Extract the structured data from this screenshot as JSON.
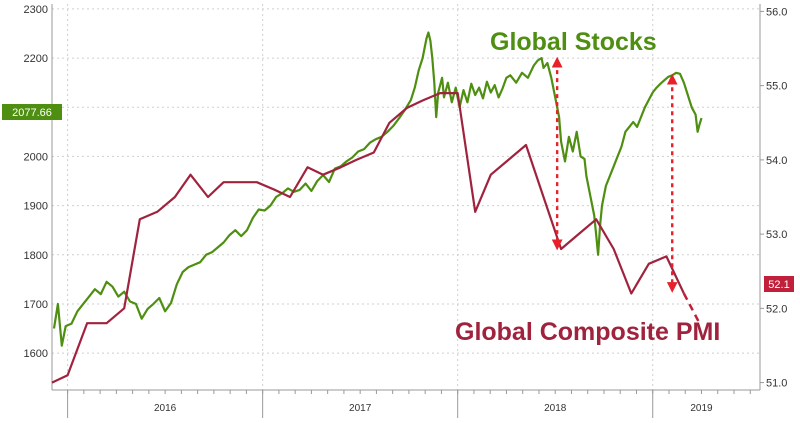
{
  "chart_data": {
    "type": "line",
    "title": "",
    "xlabel": "",
    "ylabel": "",
    "grid": true,
    "x_ticks": [
      "2016",
      "2017",
      "2018",
      "2019"
    ],
    "left_axis": {
      "ticks": [
        1600,
        1700,
        1800,
        1900,
        2000,
        2100,
        2200,
        2300
      ],
      "ylim": [
        1525,
        2310
      ]
    },
    "right_axis": {
      "ticks": [
        51.0,
        52.0,
        53.0,
        54.0,
        55.0,
        56.0
      ],
      "ticks_text": [
        "51.0",
        "52.0",
        "53.0",
        "54.0",
        "55.0",
        "56.0"
      ],
      "ylim": [
        50.9,
        56.1
      ]
    },
    "x_range": [
      2015.92,
      2019.55
    ],
    "series": [
      {
        "name": "Global Stocks",
        "label": "Global Stocks",
        "axis": "left",
        "color": "#4e8f12",
        "last_value_text": "2077.66",
        "points": [
          [
            2015.93,
            1650
          ],
          [
            2015.95,
            1700
          ],
          [
            2015.97,
            1615
          ],
          [
            2015.99,
            1655
          ],
          [
            2016.02,
            1660
          ],
          [
            2016.05,
            1685
          ],
          [
            2016.08,
            1700
          ],
          [
            2016.11,
            1715
          ],
          [
            2016.14,
            1730
          ],
          [
            2016.17,
            1720
          ],
          [
            2016.2,
            1745
          ],
          [
            2016.23,
            1735
          ],
          [
            2016.26,
            1715
          ],
          [
            2016.29,
            1725
          ],
          [
            2016.32,
            1705
          ],
          [
            2016.35,
            1700
          ],
          [
            2016.38,
            1670
          ],
          [
            2016.41,
            1690
          ],
          [
            2016.44,
            1700
          ],
          [
            2016.47,
            1712
          ],
          [
            2016.5,
            1685
          ],
          [
            2016.53,
            1702
          ],
          [
            2016.56,
            1740
          ],
          [
            2016.59,
            1765
          ],
          [
            2016.62,
            1775
          ],
          [
            2016.65,
            1780
          ],
          [
            2016.68,
            1785
          ],
          [
            2016.71,
            1800
          ],
          [
            2016.74,
            1805
          ],
          [
            2016.77,
            1815
          ],
          [
            2016.8,
            1825
          ],
          [
            2016.83,
            1840
          ],
          [
            2016.86,
            1850
          ],
          [
            2016.89,
            1838
          ],
          [
            2016.92,
            1850
          ],
          [
            2016.95,
            1875
          ],
          [
            2016.98,
            1892
          ],
          [
            2017.01,
            1890
          ],
          [
            2017.04,
            1900
          ],
          [
            2017.07,
            1918
          ],
          [
            2017.1,
            1925
          ],
          [
            2017.13,
            1935
          ],
          [
            2017.16,
            1928
          ],
          [
            2017.19,
            1932
          ],
          [
            2017.22,
            1945
          ],
          [
            2017.25,
            1930
          ],
          [
            2017.28,
            1950
          ],
          [
            2017.31,
            1962
          ],
          [
            2017.34,
            1948
          ],
          [
            2017.37,
            1975
          ],
          [
            2017.4,
            1980
          ],
          [
            2017.43,
            1990
          ],
          [
            2017.46,
            1998
          ],
          [
            2017.49,
            2010
          ],
          [
            2017.52,
            2015
          ],
          [
            2017.55,
            2028
          ],
          [
            2017.58,
            2035
          ],
          [
            2017.61,
            2040
          ],
          [
            2017.64,
            2050
          ],
          [
            2017.67,
            2062
          ],
          [
            2017.7,
            2078
          ],
          [
            2017.73,
            2095
          ],
          [
            2017.76,
            2115
          ],
          [
            2017.78,
            2140
          ],
          [
            2017.8,
            2175
          ],
          [
            2017.82,
            2200
          ],
          [
            2017.84,
            2240
          ],
          [
            2017.85,
            2252
          ],
          [
            2017.86,
            2235
          ],
          [
            2017.87,
            2200
          ],
          [
            2017.88,
            2150
          ],
          [
            2017.89,
            2080
          ],
          [
            2017.9,
            2130
          ],
          [
            2017.92,
            2160
          ],
          [
            2017.93,
            2120
          ],
          [
            2017.95,
            2150
          ],
          [
            2017.97,
            2110
          ],
          [
            2017.99,
            2140
          ],
          [
            2018.01,
            2100
          ],
          [
            2018.03,
            2135
          ],
          [
            2018.05,
            2110
          ],
          [
            2018.07,
            2148
          ],
          [
            2018.09,
            2125
          ],
          [
            2018.11,
            2140
          ],
          [
            2018.13,
            2118
          ],
          [
            2018.15,
            2152
          ],
          [
            2018.17,
            2130
          ],
          [
            2018.19,
            2145
          ],
          [
            2018.21,
            2120
          ],
          [
            2018.23,
            2138
          ],
          [
            2018.25,
            2160
          ],
          [
            2018.27,
            2165
          ],
          [
            2018.3,
            2150
          ],
          [
            2018.33,
            2170
          ],
          [
            2018.36,
            2160
          ],
          [
            2018.39,
            2185
          ],
          [
            2018.41,
            2195
          ],
          [
            2018.43,
            2200
          ],
          [
            2018.44,
            2180
          ],
          [
            2018.46,
            2190
          ],
          [
            2018.48,
            2160
          ],
          [
            2018.5,
            2120
          ],
          [
            2018.52,
            2080
          ],
          [
            2018.53,
            2030
          ],
          [
            2018.55,
            1990
          ],
          [
            2018.57,
            2040
          ],
          [
            2018.59,
            2010
          ],
          [
            2018.61,
            2050
          ],
          [
            2018.63,
            2000
          ],
          [
            2018.65,
            1995
          ],
          [
            2018.66,
            1960
          ],
          [
            2018.68,
            1920
          ],
          [
            2018.7,
            1880
          ],
          [
            2018.71,
            1840
          ],
          [
            2018.72,
            1800
          ],
          [
            2018.73,
            1860
          ],
          [
            2018.74,
            1900
          ],
          [
            2018.76,
            1940
          ],
          [
            2018.78,
            1960
          ],
          [
            2018.8,
            1980
          ],
          [
            2018.82,
            2000
          ],
          [
            2018.84,
            2020
          ],
          [
            2018.86,
            2050
          ],
          [
            2018.88,
            2060
          ],
          [
            2018.9,
            2070
          ],
          [
            2018.92,
            2060
          ],
          [
            2018.94,
            2080
          ],
          [
            2018.96,
            2100
          ],
          [
            2018.98,
            2115
          ],
          [
            2019.0,
            2130
          ],
          [
            2019.02,
            2140
          ],
          [
            2019.04,
            2148
          ],
          [
            2019.06,
            2155
          ],
          [
            2019.08,
            2162
          ],
          [
            2019.1,
            2165
          ],
          [
            2019.12,
            2170
          ],
          [
            2019.14,
            2168
          ],
          [
            2019.16,
            2150
          ],
          [
            2019.18,
            2125
          ],
          [
            2019.2,
            2100
          ],
          [
            2019.22,
            2085
          ],
          [
            2019.23,
            2050
          ],
          [
            2019.24,
            2065
          ],
          [
            2019.25,
            2078
          ]
        ]
      },
      {
        "name": "Global Composite PMI",
        "label": "Global Composite PMI",
        "axis": "right",
        "color": "#a0233e",
        "last_value_text": "52.1",
        "points": [
          [
            2015.92,
            51.0
          ],
          [
            2016.0,
            51.1
          ],
          [
            2016.1,
            51.8
          ],
          [
            2016.2,
            51.8
          ],
          [
            2016.29,
            52.0
          ],
          [
            2016.37,
            53.2
          ],
          [
            2016.46,
            53.3
          ],
          [
            2016.55,
            53.5
          ],
          [
            2016.63,
            53.8
          ],
          [
            2016.72,
            53.5
          ],
          [
            2016.8,
            53.7
          ],
          [
            2016.89,
            53.7
          ],
          [
            2016.97,
            53.7
          ],
          [
            2017.06,
            53.6
          ],
          [
            2017.14,
            53.5
          ],
          [
            2017.23,
            53.9
          ],
          [
            2017.31,
            53.8
          ],
          [
            2017.4,
            53.9
          ],
          [
            2017.48,
            54.0
          ],
          [
            2017.57,
            54.1
          ],
          [
            2017.65,
            54.5
          ],
          [
            2017.74,
            54.7
          ],
          [
            2017.82,
            54.8
          ],
          [
            2017.91,
            54.9
          ],
          [
            2018.0,
            54.9
          ],
          [
            2018.09,
            53.3
          ],
          [
            2018.17,
            53.8
          ],
          [
            2018.26,
            54.0
          ],
          [
            2018.35,
            54.2
          ],
          [
            2018.44,
            53.5
          ],
          [
            2018.53,
            52.8
          ],
          [
            2018.62,
            53.0
          ],
          [
            2018.71,
            53.2
          ],
          [
            2018.8,
            52.8
          ],
          [
            2018.89,
            52.2
          ],
          [
            2018.98,
            52.6
          ],
          [
            2019.07,
            52.7
          ],
          [
            2019.16,
            52.2
          ]
        ],
        "dashed_tail": [
          [
            2019.16,
            52.2
          ],
          [
            2019.24,
            51.8
          ]
        ]
      }
    ]
  }
}
